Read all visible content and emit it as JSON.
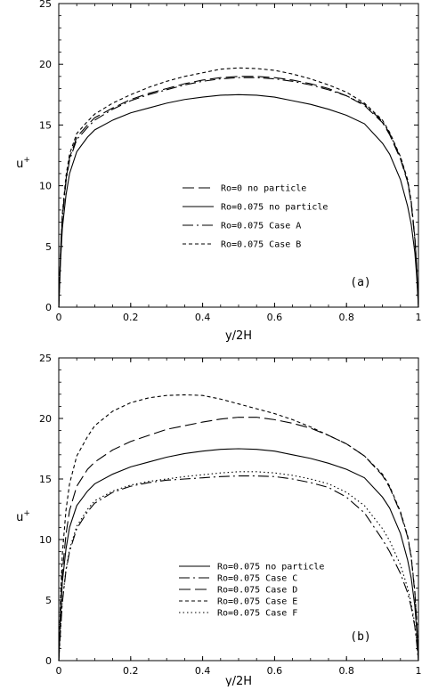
{
  "chart_data": [
    {
      "type": "line",
      "panel_label": "(a)",
      "xlabel": "y/2H",
      "ylabel": "u",
      "ylabel_sup": "+",
      "xlim": [
        0,
        1
      ],
      "ylim": [
        0,
        25
      ],
      "xticks": [
        "0",
        "0.2",
        "0.4",
        "0.6",
        "0.8",
        "1"
      ],
      "yticks": [
        "0",
        "5",
        "10",
        "15",
        "20",
        "25"
      ],
      "legend_position": "center",
      "series": [
        {
          "name": "Ro=0 no particle",
          "style": "long-dash",
          "x": [
            0,
            0.005,
            0.01,
            0.02,
            0.03,
            0.05,
            0.08,
            0.1,
            0.15,
            0.2,
            0.25,
            0.3,
            0.35,
            0.4,
            0.45,
            0.5,
            0.55,
            0.6,
            0.65,
            0.7,
            0.75,
            0.8,
            0.85,
            0.9,
            0.92,
            0.95,
            0.97,
            0.98,
            0.99,
            0.995,
            1
          ],
          "y": [
            0,
            4.5,
            7.5,
            10.5,
            12.3,
            14.0,
            15.0,
            15.6,
            16.4,
            17.1,
            17.6,
            18.0,
            18.4,
            18.7,
            18.9,
            19.0,
            19.0,
            18.9,
            18.7,
            18.4,
            18.0,
            17.4,
            16.6,
            15.2,
            14.2,
            12.2,
            10.3,
            8.5,
            5.6,
            3.3,
            0
          ]
        },
        {
          "name": "Ro=0.075 no particle",
          "style": "solid",
          "x": [
            0,
            0.005,
            0.01,
            0.02,
            0.03,
            0.05,
            0.08,
            0.1,
            0.15,
            0.2,
            0.25,
            0.3,
            0.35,
            0.4,
            0.45,
            0.5,
            0.55,
            0.6,
            0.65,
            0.7,
            0.75,
            0.8,
            0.85,
            0.9,
            0.92,
            0.95,
            0.97,
            0.98,
            0.99,
            0.995,
            1
          ],
          "y": [
            0,
            3.8,
            6.5,
            9.2,
            11.0,
            12.8,
            14.0,
            14.6,
            15.4,
            16.0,
            16.4,
            16.8,
            17.1,
            17.3,
            17.45,
            17.5,
            17.45,
            17.3,
            17.0,
            16.7,
            16.3,
            15.8,
            15.1,
            13.5,
            12.6,
            10.5,
            8.3,
            6.8,
            4.5,
            2.6,
            0
          ]
        },
        {
          "name": "Ro=0.075 Case A",
          "style": "dash-dot",
          "x": [
            0,
            0.005,
            0.01,
            0.02,
            0.03,
            0.05,
            0.08,
            0.1,
            0.15,
            0.2,
            0.25,
            0.3,
            0.35,
            0.4,
            0.45,
            0.5,
            0.55,
            0.6,
            0.65,
            0.7,
            0.75,
            0.8,
            0.85,
            0.9,
            0.92,
            0.95,
            0.97,
            0.98,
            0.99,
            0.995,
            1
          ],
          "y": [
            0,
            4.4,
            7.3,
            10.3,
            12.1,
            13.8,
            14.8,
            15.4,
            16.3,
            17.0,
            17.5,
            17.9,
            18.3,
            18.6,
            18.8,
            18.9,
            18.9,
            18.8,
            18.6,
            18.3,
            17.9,
            17.4,
            16.7,
            15.3,
            14.3,
            12.3,
            10.4,
            8.6,
            5.7,
            3.4,
            0
          ]
        },
        {
          "name": "Ro=0.075 Case B",
          "style": "short-dash",
          "x": [
            0,
            0.005,
            0.01,
            0.02,
            0.03,
            0.05,
            0.08,
            0.1,
            0.15,
            0.2,
            0.25,
            0.3,
            0.35,
            0.4,
            0.45,
            0.5,
            0.55,
            0.6,
            0.65,
            0.7,
            0.75,
            0.8,
            0.85,
            0.9,
            0.92,
            0.95,
            0.97,
            0.98,
            0.99,
            0.995,
            1
          ],
          "y": [
            0,
            4.6,
            7.7,
            10.8,
            12.6,
            14.3,
            15.3,
            15.9,
            16.8,
            17.5,
            18.1,
            18.6,
            19.0,
            19.3,
            19.6,
            19.7,
            19.65,
            19.5,
            19.2,
            18.8,
            18.3,
            17.7,
            16.8,
            15.4,
            14.4,
            12.4,
            10.5,
            8.7,
            5.8,
            3.5,
            0
          ]
        }
      ]
    },
    {
      "type": "line",
      "panel_label": "(b)",
      "xlabel": "y/2H",
      "ylabel": "u",
      "ylabel_sup": "+",
      "xlim": [
        0,
        1
      ],
      "ylim": [
        0,
        25
      ],
      "xticks": [
        "0",
        "0.2",
        "0.4",
        "0.6",
        "0.8",
        "1"
      ],
      "yticks": [
        "0",
        "5",
        "10",
        "15",
        "20",
        "25"
      ],
      "legend_position": "bottom-center",
      "series": [
        {
          "name": "Ro=0.075 no particle",
          "style": "solid",
          "x": [
            0,
            0.005,
            0.01,
            0.02,
            0.03,
            0.05,
            0.08,
            0.1,
            0.15,
            0.2,
            0.25,
            0.3,
            0.35,
            0.4,
            0.45,
            0.5,
            0.55,
            0.6,
            0.65,
            0.7,
            0.75,
            0.8,
            0.85,
            0.9,
            0.92,
            0.95,
            0.97,
            0.98,
            0.99,
            0.995,
            1
          ],
          "y": [
            0,
            3.8,
            6.5,
            9.2,
            11.0,
            12.8,
            14.0,
            14.6,
            15.4,
            16.0,
            16.4,
            16.8,
            17.1,
            17.3,
            17.45,
            17.5,
            17.45,
            17.3,
            17.0,
            16.7,
            16.3,
            15.8,
            15.1,
            13.5,
            12.6,
            10.5,
            8.3,
            6.8,
            4.5,
            2.6,
            0
          ]
        },
        {
          "name": "Ro=0.075 Case C",
          "style": "dash-dot",
          "x": [
            0,
            0.005,
            0.01,
            0.02,
            0.03,
            0.05,
            0.08,
            0.1,
            0.15,
            0.2,
            0.25,
            0.3,
            0.35,
            0.4,
            0.45,
            0.5,
            0.55,
            0.6,
            0.65,
            0.7,
            0.75,
            0.8,
            0.85,
            0.9,
            0.92,
            0.95,
            0.97,
            0.98,
            0.99,
            0.995,
            1
          ],
          "y": [
            0,
            2.5,
            4.8,
            7.4,
            9.0,
            10.9,
            12.3,
            13.0,
            13.9,
            14.4,
            14.7,
            14.9,
            15.0,
            15.1,
            15.2,
            15.25,
            15.25,
            15.2,
            15.0,
            14.7,
            14.3,
            13.5,
            12.2,
            10.0,
            9.0,
            7.2,
            5.6,
            4.4,
            2.8,
            1.5,
            0
          ]
        },
        {
          "name": "Ro=0.075 Case D",
          "style": "long-dash",
          "x": [
            0,
            0.005,
            0.01,
            0.02,
            0.03,
            0.05,
            0.08,
            0.1,
            0.15,
            0.2,
            0.25,
            0.3,
            0.35,
            0.4,
            0.45,
            0.5,
            0.55,
            0.6,
            0.65,
            0.7,
            0.75,
            0.8,
            0.85,
            0.9,
            0.92,
            0.95,
            0.97,
            0.98,
            0.99,
            0.995,
            1
          ],
          "y": [
            0,
            4.2,
            7.3,
            10.4,
            12.4,
            14.4,
            15.8,
            16.4,
            17.4,
            18.1,
            18.6,
            19.1,
            19.4,
            19.7,
            19.95,
            20.1,
            20.1,
            19.9,
            19.6,
            19.2,
            18.6,
            17.9,
            16.9,
            15.3,
            14.3,
            12.2,
            10.2,
            8.5,
            5.6,
            3.3,
            0
          ]
        },
        {
          "name": "Ro=0.075 Case E",
          "style": "short-dash",
          "x": [
            0,
            0.005,
            0.01,
            0.02,
            0.03,
            0.05,
            0.08,
            0.1,
            0.15,
            0.2,
            0.25,
            0.3,
            0.35,
            0.4,
            0.45,
            0.5,
            0.55,
            0.6,
            0.65,
            0.7,
            0.75,
            0.8,
            0.85,
            0.9,
            0.92,
            0.95,
            0.97,
            0.98,
            0.99,
            0.995,
            1
          ],
          "y": [
            0,
            5.2,
            8.8,
            12.4,
            14.6,
            16.9,
            18.5,
            19.4,
            20.6,
            21.3,
            21.7,
            21.9,
            21.95,
            21.9,
            21.6,
            21.2,
            20.8,
            20.4,
            19.9,
            19.3,
            18.6,
            17.9,
            16.9,
            15.4,
            14.4,
            12.3,
            10.3,
            8.6,
            5.7,
            3.4,
            0
          ]
        },
        {
          "name": "Ro=0.075 Case F",
          "style": "dotted",
          "x": [
            0,
            0.005,
            0.01,
            0.02,
            0.03,
            0.05,
            0.08,
            0.1,
            0.15,
            0.2,
            0.25,
            0.3,
            0.35,
            0.4,
            0.45,
            0.5,
            0.55,
            0.6,
            0.65,
            0.7,
            0.75,
            0.8,
            0.85,
            0.9,
            0.92,
            0.95,
            0.97,
            0.98,
            0.99,
            0.995,
            1
          ],
          "y": [
            0,
            2.6,
            4.9,
            7.5,
            9.2,
            11.1,
            12.5,
            13.2,
            14.0,
            14.5,
            14.8,
            15.0,
            15.2,
            15.35,
            15.5,
            15.6,
            15.6,
            15.5,
            15.3,
            15.0,
            14.6,
            13.9,
            12.8,
            10.9,
            9.9,
            7.9,
            6.0,
            4.7,
            3.0,
            1.6,
            0
          ]
        }
      ]
    }
  ]
}
